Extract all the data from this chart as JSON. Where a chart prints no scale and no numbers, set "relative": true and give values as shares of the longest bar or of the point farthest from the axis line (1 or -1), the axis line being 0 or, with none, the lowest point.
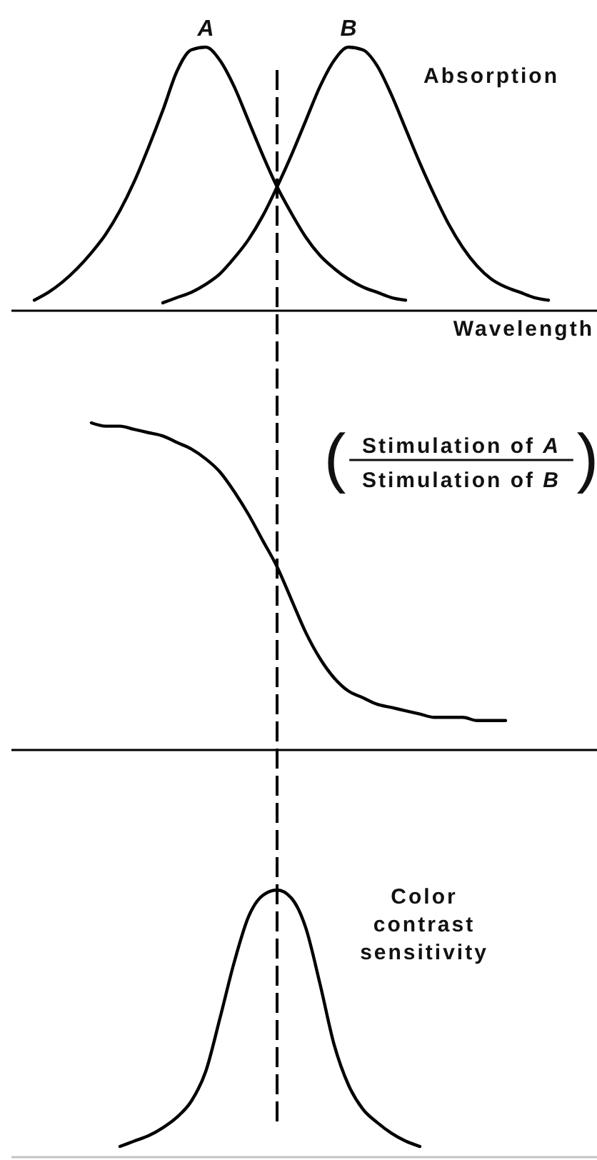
{
  "chart_data": [
    {
      "type": "line",
      "relative": true,
      "xlabel": "Wavelength",
      "ylabel": "Absorption",
      "categories": [
        null,
        null,
        null,
        null,
        null,
        null,
        null,
        null,
        null,
        null,
        null,
        null,
        null,
        null,
        null,
        null,
        null,
        null,
        null,
        null,
        null,
        null,
        null,
        null,
        null,
        null,
        null,
        null,
        null,
        null,
        null,
        null,
        null,
        null,
        null,
        null,
        null,
        null,
        null,
        null,
        null
      ],
      "series": [
        {
          "name": "A",
          "color": "#000000",
          "values": [
            null,
            null,
            0.04,
            0.07,
            0.11,
            0.16,
            0.22,
            0.29,
            0.38,
            0.49,
            0.62,
            0.76,
            0.91,
            0.99,
            1.0,
            0.95,
            0.85,
            0.72,
            0.59,
            0.47,
            0.37,
            0.28,
            0.21,
            0.16,
            0.12,
            0.09,
            0.07,
            0.05,
            0.04,
            null,
            null,
            null,
            null,
            null,
            null,
            null,
            null,
            null,
            null,
            null,
            null
          ]
        },
        {
          "name": "B",
          "color": "#000000",
          "values": [
            null,
            null,
            null,
            null,
            null,
            null,
            null,
            null,
            null,
            null,
            null,
            0.03,
            0.05,
            0.07,
            0.1,
            0.14,
            0.2,
            0.27,
            0.36,
            0.47,
            0.59,
            0.72,
            0.85,
            0.95,
            1.0,
            0.99,
            0.93,
            0.82,
            0.69,
            0.56,
            0.44,
            0.33,
            0.24,
            0.17,
            0.12,
            0.09,
            0.07,
            0.05,
            0.04,
            null,
            null
          ]
        }
      ]
    },
    {
      "type": "line",
      "relative": true,
      "ylabel": "(Stimulation of A\nStimulation of B)",
      "categories": [
        null,
        null,
        null,
        null,
        null,
        null,
        null,
        null,
        null,
        null,
        null,
        null,
        null,
        null,
        null,
        null,
        null,
        null,
        null,
        null,
        null,
        null,
        null,
        null,
        null,
        null,
        null,
        null,
        null,
        null,
        null,
        null,
        null,
        null,
        null,
        null,
        null,
        null,
        null,
        null,
        null
      ],
      "series": [
        {
          "color": "#000000",
          "values": [
            null,
            null,
            null,
            null,
            null,
            null,
            1.0,
            0.99,
            0.99,
            0.98,
            0.97,
            0.96,
            0.94,
            0.92,
            0.89,
            0.85,
            0.79,
            0.72,
            0.64,
            0.56,
            0.46,
            0.36,
            0.28,
            0.22,
            0.18,
            0.16,
            0.14,
            0.13,
            0.12,
            0.11,
            0.1,
            0.1,
            0.1,
            0.09,
            0.09,
            0.09,
            null,
            null,
            null,
            null,
            null
          ]
        }
      ]
    },
    {
      "type": "line",
      "relative": true,
      "ylabel": "Color contrast sensitivity",
      "categories": [
        null,
        null,
        null,
        null,
        null,
        null,
        null,
        null,
        null,
        null,
        null,
        null,
        null,
        null,
        null,
        null,
        null,
        null,
        null,
        null,
        null,
        null,
        null,
        null,
        null,
        null,
        null,
        null,
        null,
        null,
        null,
        null,
        null,
        null,
        null,
        null,
        null,
        null,
        null,
        null,
        null
      ],
      "series": [
        {
          "color": "#000000",
          "values": [
            null,
            null,
            null,
            null,
            null,
            null,
            null,
            null,
            0.04,
            0.06,
            0.08,
            0.11,
            0.15,
            0.21,
            0.32,
            0.52,
            0.73,
            0.9,
            0.98,
            1.0,
            0.97,
            0.86,
            0.65,
            0.42,
            0.27,
            0.18,
            0.13,
            0.09,
            0.06,
            0.04,
            null,
            null,
            null,
            null,
            null,
            null,
            null,
            null,
            null,
            null,
            null
          ]
        }
      ]
    }
  ]
}
